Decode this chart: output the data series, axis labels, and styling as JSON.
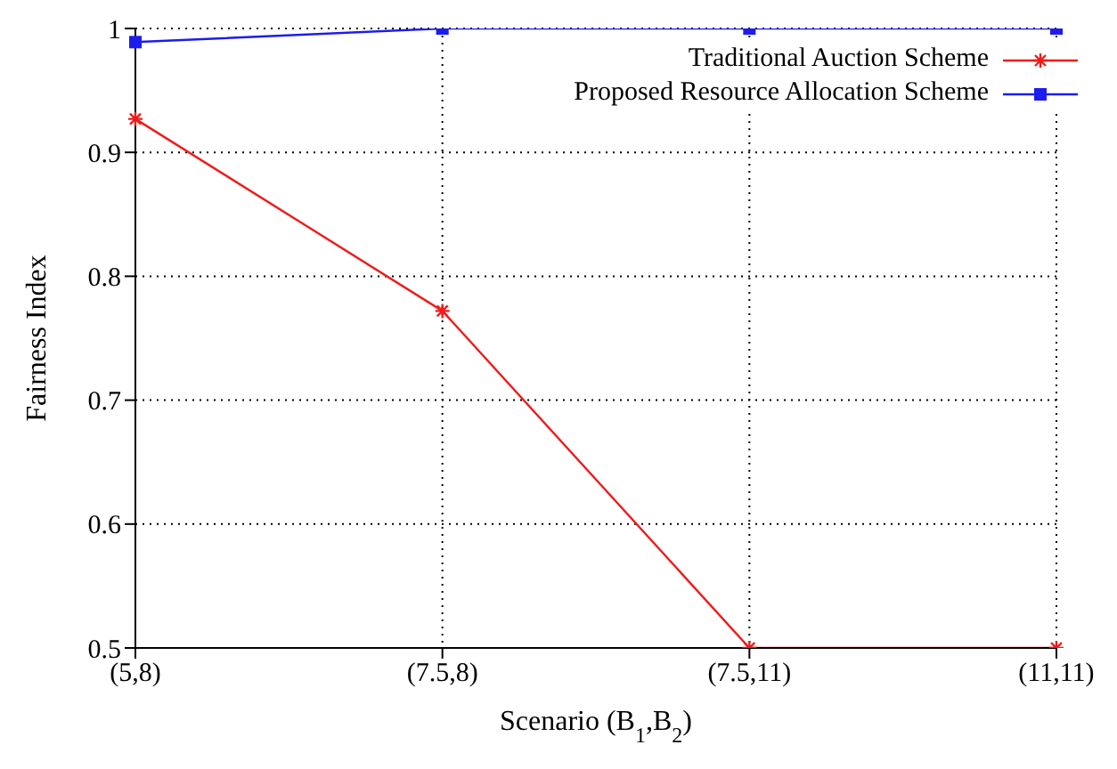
{
  "chart_data": {
    "type": "line",
    "xlabel": "Scenario (B$_{1}$,B$_{2}$)",
    "ylabel": "Fairness Index",
    "categories": [
      "(5,8)",
      "(7.5,8)",
      "(7.5,11)",
      "(11,11)"
    ],
    "series": [
      {
        "name": "Traditional Auction Scheme",
        "color": "#ee1c1c",
        "marker": "cross",
        "values": [
          0.927,
          0.772,
          0.5,
          0.5
        ]
      },
      {
        "name": "Proposed Resource Allocation Scheme",
        "color": "#1c1cee",
        "marker": "square",
        "values": [
          0.989,
          1,
          1,
          1
        ]
      }
    ],
    "ylim": [
      0.5,
      1
    ],
    "yticks": [
      0.5,
      0.6,
      0.7,
      0.8,
      0.9,
      1
    ],
    "grid": true,
    "legend": "top right",
    "line_style": "solid"
  }
}
